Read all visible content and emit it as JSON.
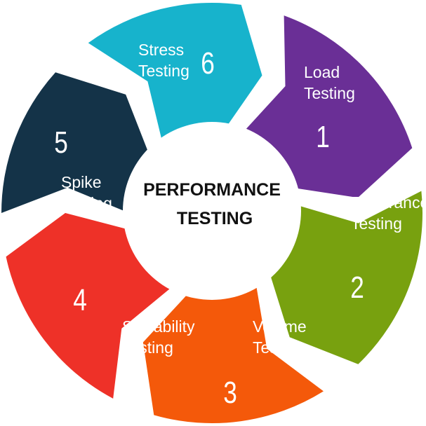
{
  "center": {
    "line1": "PERFORMANCE",
    "line2": "TESTING"
  },
  "segments": [
    {
      "number": "1",
      "line1": "Load",
      "line2": "Testing",
      "color": "#6a2f96"
    },
    {
      "number": "2",
      "line1": "Endurance",
      "line2": "Testing",
      "color": "#78a10f"
    },
    {
      "number": "3",
      "line1": "Volume",
      "line2": "Testing",
      "color": "#f4590a"
    },
    {
      "number": "4",
      "line1": "Scalability",
      "line2": "Testing",
      "color": "#ee3128"
    },
    {
      "number": "5",
      "line1": "Spike",
      "line2": "Testing",
      "color": "#143348"
    },
    {
      "number": "6",
      "line1": "Stress",
      "line2": "Testing",
      "color": "#17b3cc"
    }
  ]
}
